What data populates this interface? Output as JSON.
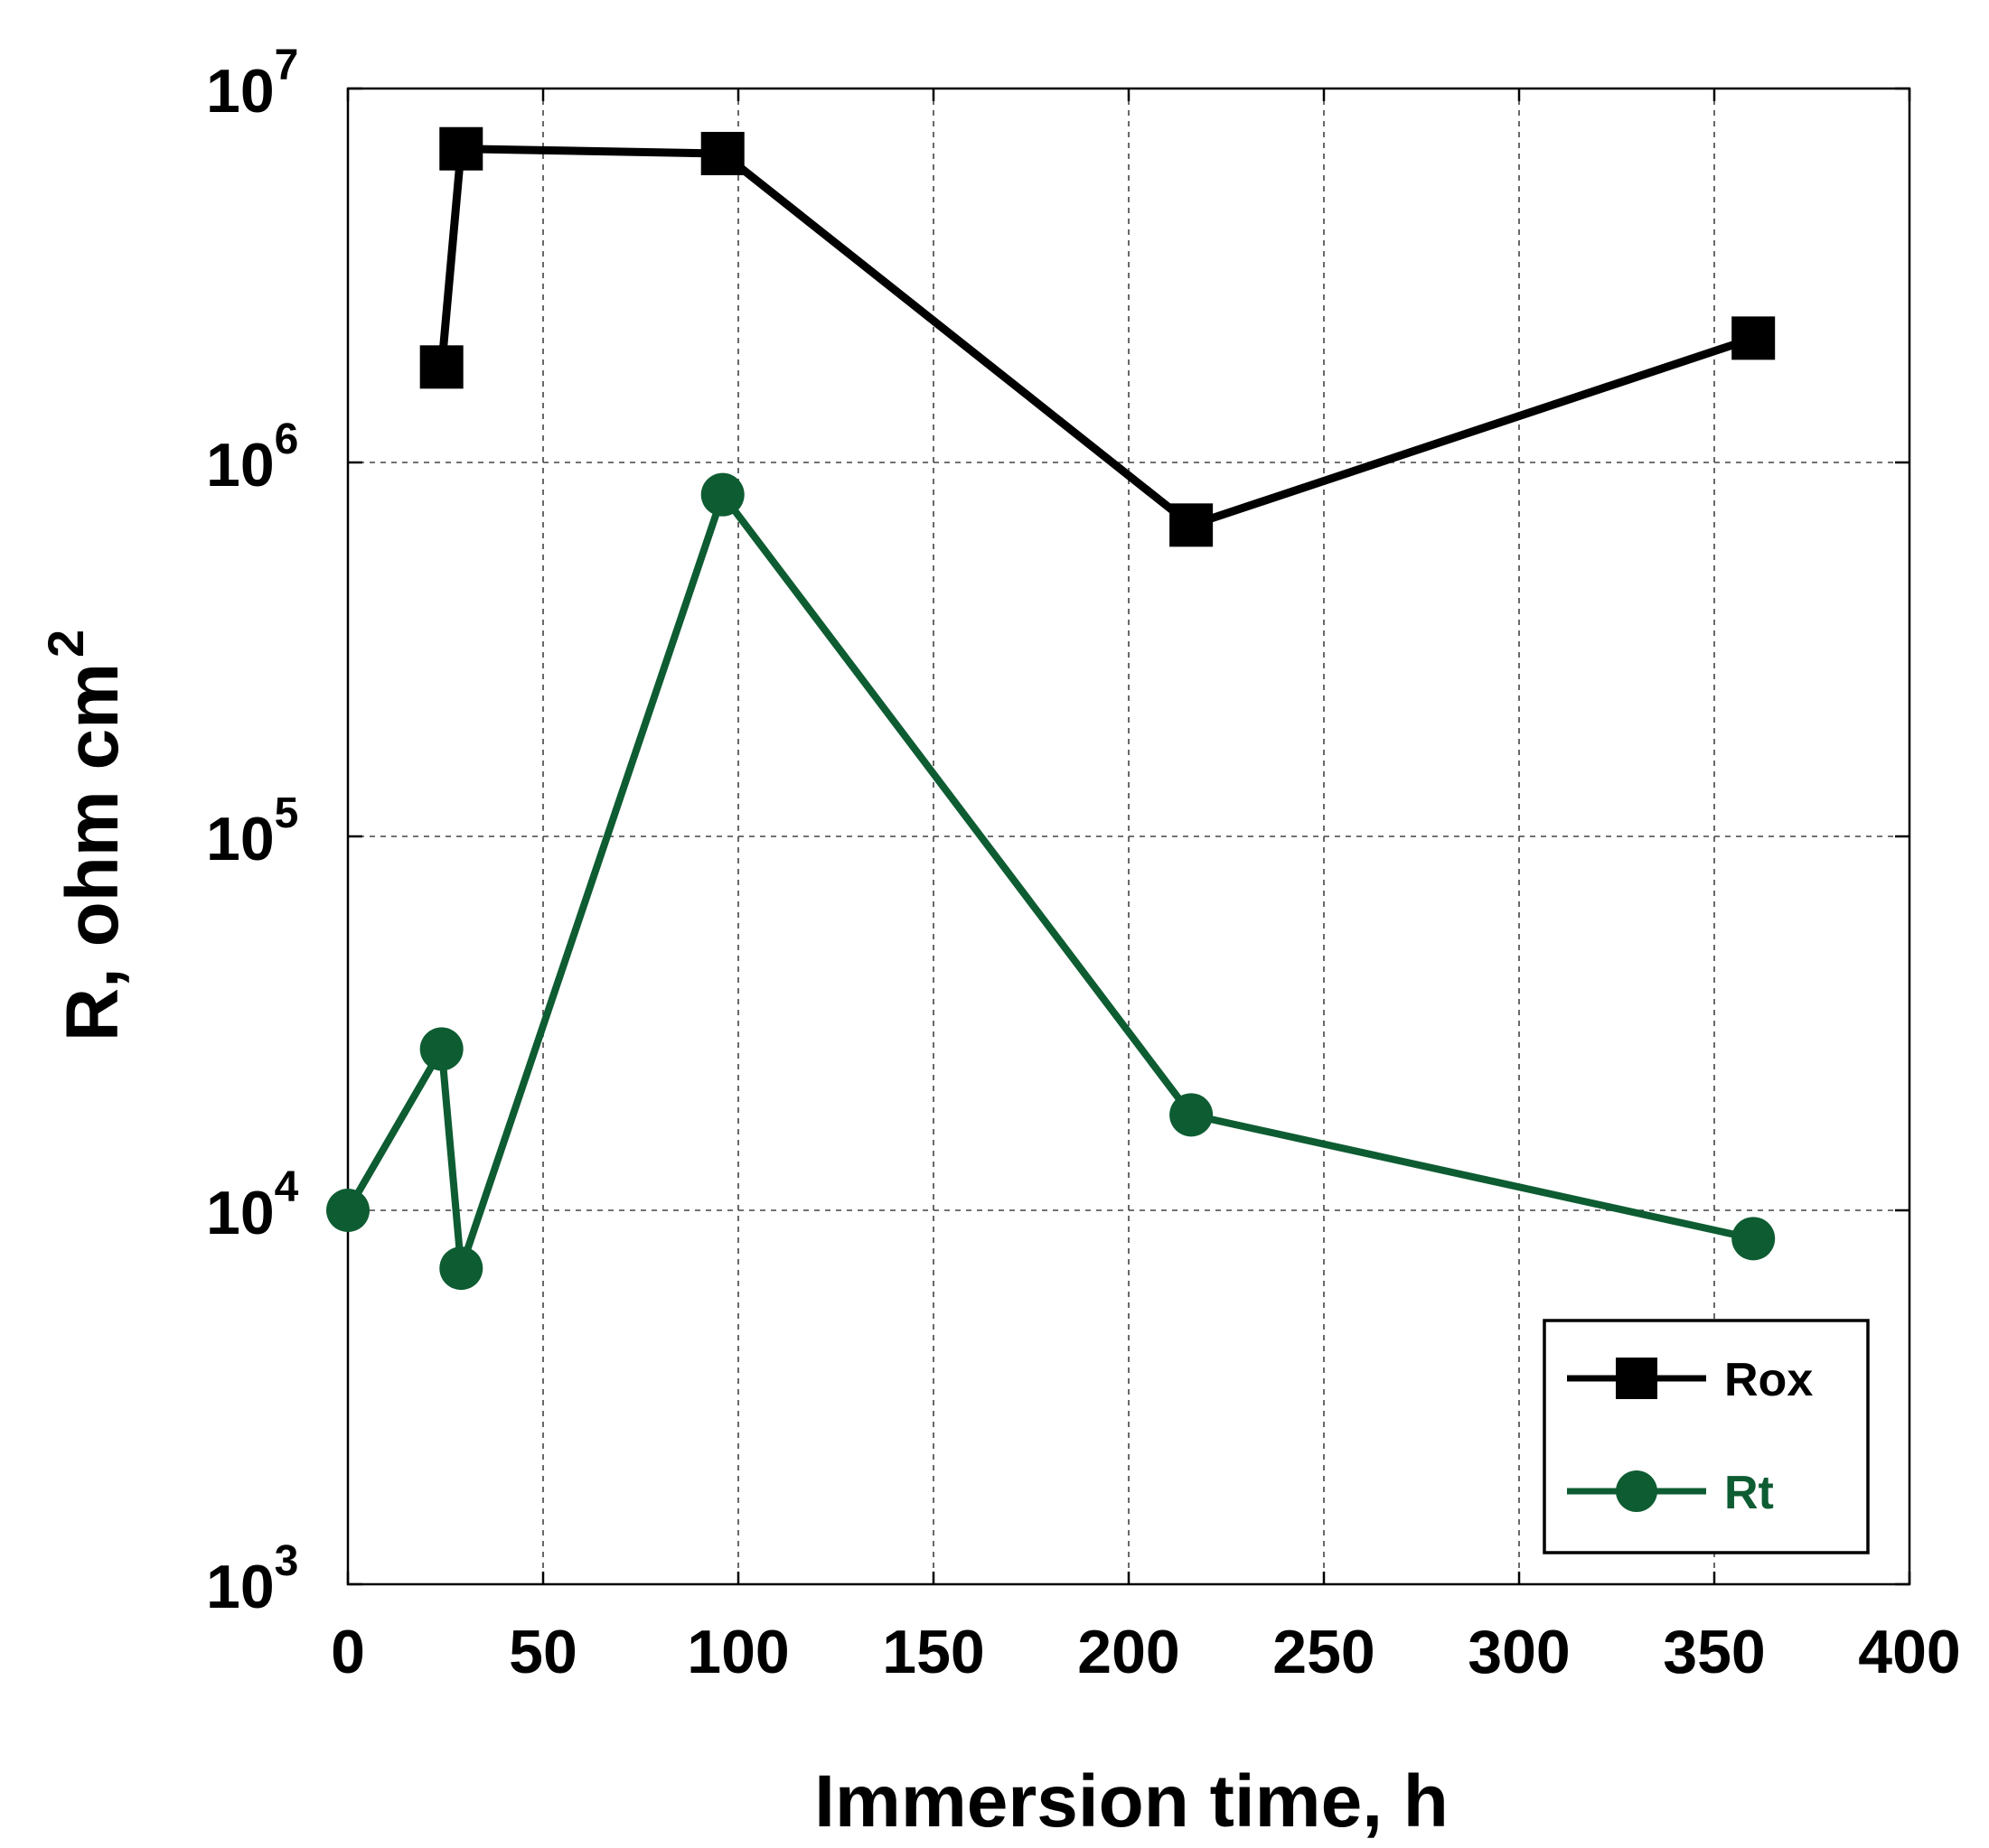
{
  "chart_data": {
    "type": "line",
    "title": "",
    "xlabel": "Immersion time, h",
    "ylabel_base": "R, ohm cm",
    "ylabel_sup": "2",
    "xlim": [
      0,
      400
    ],
    "ylim": [
      1000,
      10000000
    ],
    "yscale": "log",
    "grid": true,
    "x_ticks": [
      "0",
      "50",
      "100",
      "150",
      "200",
      "250",
      "300",
      "350",
      "400"
    ],
    "y_ticks": [
      {
        "base": "10",
        "exp": "3"
      },
      {
        "base": "10",
        "exp": "4"
      },
      {
        "base": "10",
        "exp": "5"
      },
      {
        "base": "10",
        "exp": "6"
      },
      {
        "base": "10",
        "exp": "7"
      }
    ],
    "legend_position": "bottom-right",
    "series": [
      {
        "name": "Rox",
        "marker": "square",
        "color": "#000000",
        "x": [
          24,
          29,
          96,
          216,
          360
        ],
        "y": [
          1800000,
          6900000,
          6700000,
          680000,
          2150000
        ]
      },
      {
        "name": "Rt",
        "marker": "circle",
        "color": "#0e5c32",
        "x": [
          0,
          24,
          29,
          96,
          216,
          360
        ],
        "y": [
          10000,
          27000,
          7000,
          820000,
          18000,
          8400
        ]
      }
    ]
  }
}
